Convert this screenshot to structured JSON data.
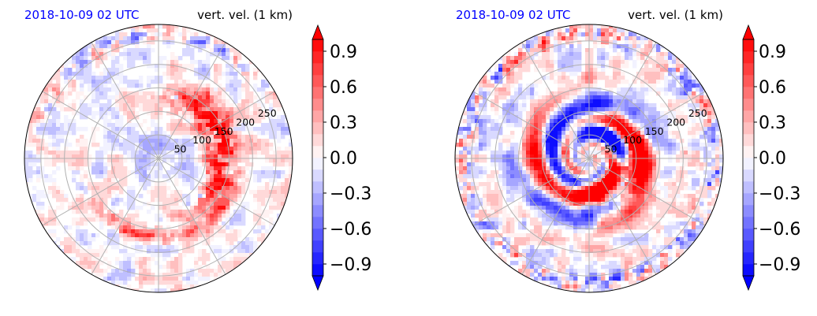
{
  "colors": {
    "timestamp": "#0000ff",
    "negative": "#0000ff",
    "positive": "#ff0000",
    "neutral": "#ffffff",
    "grid": "#b0b0b0"
  },
  "panels": [
    {
      "timestamp": "2018-10-09 02 UTC",
      "field_label": "vert. vel. (1 km)",
      "pattern": "asymmetric"
    },
    {
      "timestamp": "2018-10-09 02 UTC",
      "field_label": "vert. vel. (1 km)",
      "pattern": "spiral"
    }
  ],
  "chart_data": [
    {
      "type": "heatmap",
      "projection": "polar",
      "title": "2018-10-09 02 UTC",
      "subtitle": "vert. vel. (1 km)",
      "radial_ticks": [
        "50",
        "100",
        "150",
        "200",
        "250"
      ],
      "radial_values": [
        50,
        100,
        150,
        200,
        250
      ],
      "r_max": 285,
      "angular_gridlines_deg": [
        0,
        30,
        60,
        90,
        120,
        150,
        180,
        210,
        240,
        270,
        300,
        330
      ],
      "grid": true,
      "colorbar": {
        "vmin": -1.0,
        "vmax": 1.0,
        "levels": 20,
        "extend": "both",
        "ticks": [
          "−0.9",
          "−0.6",
          "−0.3",
          "0.0",
          "0.3",
          "0.6",
          "0.9"
        ],
        "tick_values": [
          -0.9,
          -0.6,
          -0.3,
          0.0,
          0.3,
          0.6,
          0.9
        ]
      }
    },
    {
      "type": "heatmap",
      "projection": "polar",
      "title": "2018-10-09 02 UTC",
      "subtitle": "vert. vel. (1 km)",
      "radial_ticks": [
        "50",
        "100",
        "150",
        "200",
        "250"
      ],
      "radial_values": [
        50,
        100,
        150,
        200,
        250
      ],
      "r_max": 285,
      "angular_gridlines_deg": [
        0,
        30,
        60,
        90,
        120,
        150,
        180,
        210,
        240,
        270,
        300,
        330
      ],
      "grid": true,
      "colorbar": {
        "vmin": -1.0,
        "vmax": 1.0,
        "levels": 20,
        "extend": "both",
        "ticks": [
          "−0.9",
          "−0.6",
          "−0.3",
          "0.0",
          "0.3",
          "0.6",
          "0.9"
        ],
        "tick_values": [
          -0.9,
          -0.6,
          -0.3,
          0.0,
          0.3,
          0.6,
          0.9
        ]
      }
    }
  ]
}
